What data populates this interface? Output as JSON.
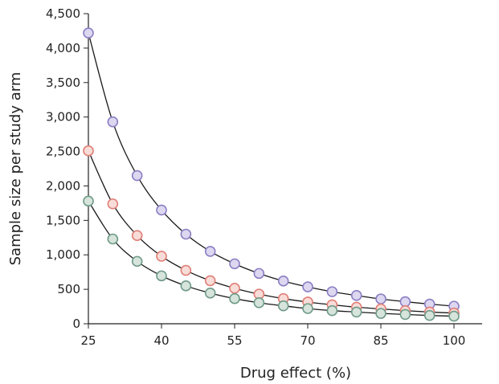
{
  "chart_data": {
    "type": "line",
    "title": "",
    "xlabel": "Drug effect (%)",
    "ylabel": "Sample size per study arm",
    "xlim": [
      25,
      100
    ],
    "ylim": [
      0,
      4500
    ],
    "x_ticks": [
      25,
      40,
      55,
      70,
      85,
      100
    ],
    "y_ticks": [
      {
        "value": 0,
        "label": "0"
      },
      {
        "value": 500,
        "label": "500"
      },
      {
        "value": 1000,
        "label": "1,000"
      },
      {
        "value": 1500,
        "label": "1,500"
      },
      {
        "value": 2000,
        "label": "2,000"
      },
      {
        "value": 2500,
        "label": "2,500"
      },
      {
        "value": 3000,
        "label": "3,000"
      },
      {
        "value": 3500,
        "label": "3,500"
      },
      {
        "value": 4000,
        "label": "4,000"
      },
      {
        "value": 4500,
        "label": "4,500"
      }
    ],
    "grid": false,
    "legend": "none",
    "x": [
      25,
      30,
      35,
      40,
      45,
      50,
      55,
      60,
      65,
      70,
      75,
      80,
      85,
      90,
      95,
      100
    ],
    "series": [
      {
        "color": "#8b7fc4",
        "fill": "#ddd7f0",
        "values": [
          4220,
          2930,
          2150,
          1650,
          1300,
          1050,
          870,
          730,
          620,
          535,
          465,
          410,
          360,
          320,
          285,
          255
        ]
      },
      {
        "color": "#e07f77",
        "fill": "#f8dcd8",
        "values": [
          2510,
          1740,
          1280,
          980,
          775,
          625,
          515,
          430,
          365,
          315,
          275,
          240,
          215,
          190,
          170,
          155
        ]
      },
      {
        "color": "#6f9a88",
        "fill": "#d6e4dc",
        "values": [
          1780,
          1230,
          905,
          695,
          550,
          445,
          365,
          305,
          260,
          220,
          190,
          170,
          150,
          135,
          120,
          110
        ]
      }
    ]
  }
}
